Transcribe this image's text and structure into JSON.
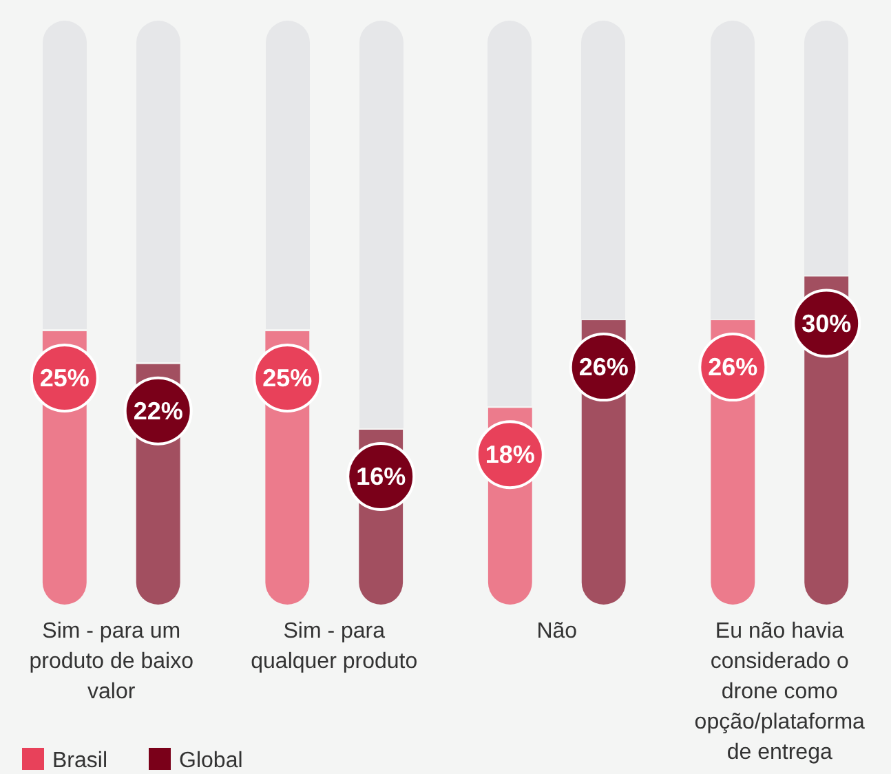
{
  "chart_data": {
    "type": "bar",
    "categories": [
      "Sim - para um produto de baixo valor",
      "Sim - para qualquer produto",
      "Não",
      "Eu não havia considerado o drone como opção/plataforma de entrega"
    ],
    "series": [
      {
        "name": "Brasil",
        "color": "#e8415a",
        "values": [
          25,
          25,
          18,
          26
        ],
        "value_labels": [
          "25%",
          "25%",
          "18%",
          "26%"
        ]
      },
      {
        "name": "Global",
        "color": "#7a0019",
        "values": [
          22,
          16,
          26,
          30
        ],
        "value_labels": [
          "22%",
          "16%",
          "26%",
          "30%"
        ]
      }
    ],
    "legend": "bottom left"
  }
}
